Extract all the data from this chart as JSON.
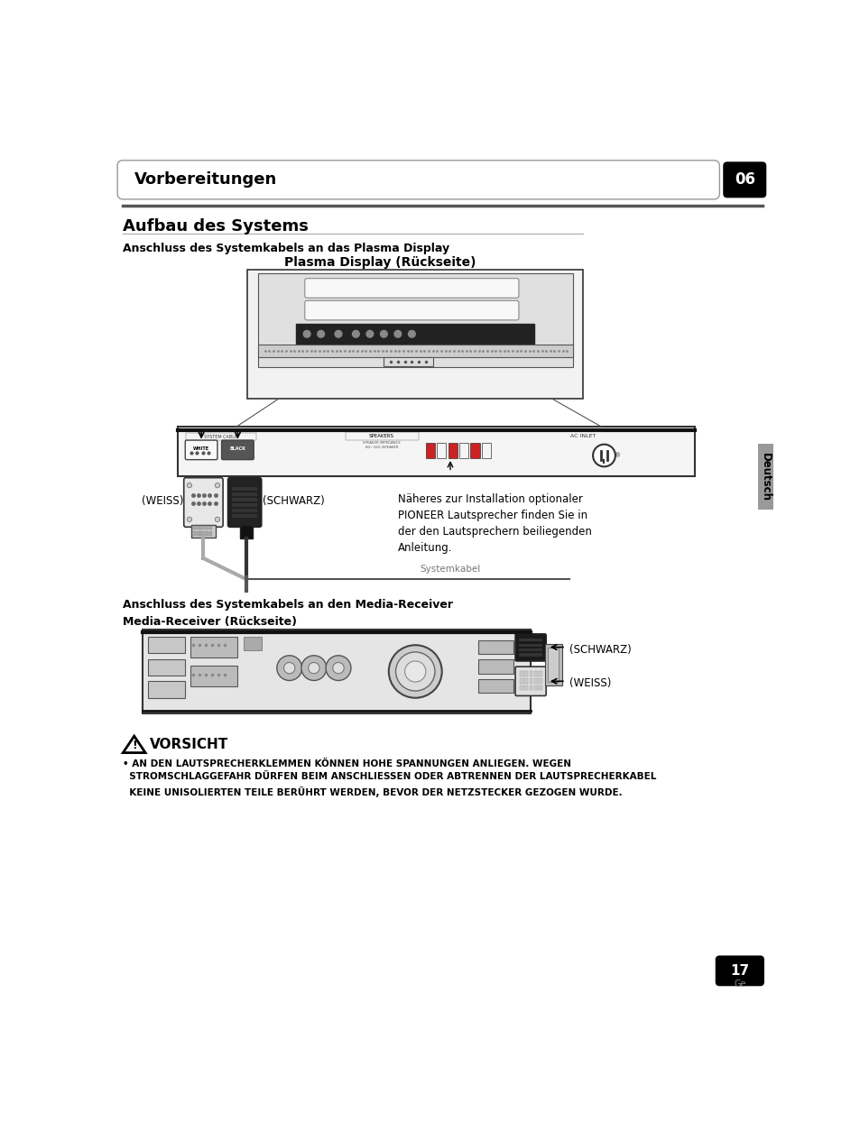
{
  "bg_color": "#ffffff",
  "page_title": "Vorbereitungen",
  "page_num": "06",
  "page_num_bottom": "17",
  "page_lang_bottom": "Ge",
  "section_title": "Aufbau des Systems",
  "subsection1": "Anschluss des Systemkabels an das Plasma Display",
  "diagram1_title": "Plasma Display (Rückseite)",
  "weiss_label1": "(WEISS)",
  "schwarz_label1": "(SCHWARZ)",
  "note_text": "Näheres zur Installation optionaler\nPIONEER Lautsprecher finden Sie in\nder den Lautsprechern beiliegenden\nAnleitung.",
  "systemkabel_label": "Systemkabel",
  "subsection2": "Anschluss des Systemkabels an den Media-Receiver",
  "diagram2_title": "Media-Receiver (Rückseite)",
  "schwarz_label2": "(SCHWARZ)",
  "weiss_label2": "(WEISS)",
  "deutsch_label": "Deutsch",
  "warning_title": "VORSICHT",
  "warning_bullet": "• AN DEN LAUTSPRECHERKLEMMEN KÖNNEN HOHE SPANNUNGEN ANLIEGEN. WEGEN\n  STROMSCHLAGGEFAHR DÜRFEN BEIM ANSCHLIESSEN ODER ABTRENNEN DER LAUTSPRECHERKABEL\n  KEINE UNISOLIERTEN TEILE BERÜHRT WERDEN, BEVOR DER NETZSTECKER GEZOGEN WURDE."
}
